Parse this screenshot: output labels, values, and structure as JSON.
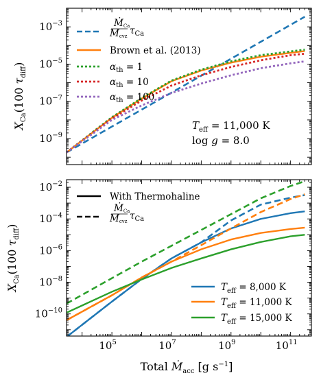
{
  "chart_data": [
    {
      "type": "line",
      "xlim": [
        3000.0,
        500000000000.0
      ],
      "ylim": [
        4e-11,
        0.01
      ],
      "xscale": "log",
      "yscale": "log",
      "ylabel": "X_Ca(100 τ_diff)",
      "x_ticks": [
        "10^5",
        "10^7",
        "10^9",
        "10^11"
      ],
      "y_ticks": [
        "10^-9",
        "10^-7",
        "10^-5",
        "10^-3"
      ],
      "legend_position": "upper-left",
      "annotation": [
        "T_eff = 11,000 K",
        "log g = 8.0"
      ],
      "series": [
        {
          "name": "(Ṁ_Ca / M_cvz) τ_Ca",
          "color": "#1f77b4",
          "style": "dashed",
          "points": [
            [
              3000.0,
              1.8e-10
            ],
            [
              300000000000.0,
              0.0035
            ]
          ]
        },
        {
          "name": "Brown et al. (2013)",
          "color": "#ff7f0e",
          "style": "solid",
          "points": [
            [
              3000.0,
              1.8e-10
            ],
            [
              100000.0,
              1.3e-08
            ],
            [
              1000000.0,
              1.4e-07
            ],
            [
              10000000.0,
              1.2e-06
            ],
            [
              100000000.0,
              4.5e-06
            ],
            [
              1000000000.0,
              1.2e-05
            ],
            [
              10000000000.0,
              2.5e-05
            ],
            [
              100000000000.0,
              4e-05
            ],
            [
              300000000000.0,
              5e-05
            ]
          ]
        },
        {
          "name": "α_th = 1",
          "color": "#2ca02c",
          "style": "dotted",
          "points": [
            [
              3000.0,
              1.8e-10
            ],
            [
              100000.0,
              1.4e-08
            ],
            [
              1000000.0,
              1.5e-07
            ],
            [
              10000000.0,
              1.3e-06
            ],
            [
              100000000.0,
              5e-06
            ],
            [
              1000000000.0,
              1.4e-05
            ],
            [
              10000000000.0,
              3e-05
            ],
            [
              100000000000.0,
              4.8e-05
            ],
            [
              300000000000.0,
              6e-05
            ]
          ]
        },
        {
          "name": "α_th = 10",
          "color": "#d62728",
          "style": "dotted",
          "points": [
            [
              3000.0,
              1.8e-10
            ],
            [
              100000.0,
              1.2e-08
            ],
            [
              1000000.0,
              1.1e-07
            ],
            [
              10000000.0,
              7e-07
            ],
            [
              100000000.0,
              2.5e-06
            ],
            [
              1000000000.0,
              7e-06
            ],
            [
              10000000000.0,
              1.6e-05
            ],
            [
              100000000000.0,
              3e-05
            ],
            [
              300000000000.0,
              3.6e-05
            ]
          ]
        },
        {
          "name": "α_th = 100",
          "color": "#9467bd",
          "style": "dotted",
          "points": [
            [
              3000.0,
              1.8e-10
            ],
            [
              100000.0,
              1e-08
            ],
            [
              1000000.0,
              6e-08
            ],
            [
              10000000.0,
              2.8e-07
            ],
            [
              100000000.0,
              9e-07
            ],
            [
              1000000000.0,
              2.5e-06
            ],
            [
              10000000000.0,
              6e-06
            ],
            [
              100000000000.0,
              1.1e-05
            ],
            [
              300000000000.0,
              1.4e-05
            ]
          ]
        }
      ]
    },
    {
      "type": "line",
      "xlim": [
        3000.0,
        500000000000.0
      ],
      "ylim": [
        4e-12,
        0.03
      ],
      "xscale": "log",
      "yscale": "log",
      "xlabel": "Total Ṁ_acc [g s^-1]",
      "ylabel": "X_Ca(100 τ_diff)",
      "x_ticks": [
        "10^5",
        "10^7",
        "10^9",
        "10^11"
      ],
      "y_ticks": [
        "10^-10",
        "10^-8",
        "10^-6",
        "10^-4",
        "10^-2"
      ],
      "style_legend": [
        {
          "label": "With Thermohaline",
          "style": "solid"
        },
        {
          "label": "(Ṁ_Ca / M_cvz) τ_Ca",
          "style": "dashed"
        }
      ],
      "series": [
        {
          "name": "T_eff = 8,000 K",
          "color": "#1f77b4",
          "style": "solid",
          "points": [
            [
              3000.0,
              3.5e-12
            ],
            [
              100000.0,
              6e-10
            ],
            [
              1000000.0,
              1.6e-08
            ],
            [
              10000000.0,
              3.2e-07
            ],
            [
              100000000.0,
              3.3e-06
            ],
            [
              1000000000.0,
              2.5e-05
            ],
            [
              10000000000.0,
              0.0001
            ],
            [
              100000000000.0,
              0.00023
            ],
            [
              300000000000.0,
              0.0003
            ]
          ]
        },
        {
          "name": "T_eff = 8,000 K (dashed)",
          "color": "#1f77b4",
          "style": "dashed",
          "points": [
            [
              3000.0,
              3.5e-12
            ],
            [
              100000.0,
              6e-10
            ],
            [
              1000000.0,
              1.6e-08
            ],
            [
              10000000.0,
              3.2e-07
            ],
            [
              100000000.0,
              3.3e-06
            ],
            [
              1000000000.0,
              8e-05
            ],
            [
              10000000000.0,
              0.0008
            ],
            [
              100000000000.0,
              0.0022
            ],
            [
              300000000000.0,
              0.0032
            ]
          ]
        },
        {
          "name": "T_eff = 11,000 K",
          "color": "#ff7f0e",
          "style": "solid",
          "points": [
            [
              3000.0,
              4e-11
            ],
            [
              100000.0,
              1.5e-09
            ],
            [
              1000000.0,
              2e-08
            ],
            [
              10000000.0,
              2e-07
            ],
            [
              100000000.0,
              1.2e-06
            ],
            [
              1000000000.0,
              5e-06
            ],
            [
              10000000000.0,
              1.3e-05
            ],
            [
              100000000000.0,
              2.3e-05
            ],
            [
              300000000000.0,
              2.8e-05
            ]
          ]
        },
        {
          "name": "T_eff = 11,000 K (dashed)",
          "color": "#ff7f0e",
          "style": "dashed",
          "points": [
            [
              3000.0,
              4e-11
            ],
            [
              100000.0,
              1.5e-09
            ],
            [
              1000000.0,
              2e-08
            ],
            [
              10000000.0,
              2e-07
            ],
            [
              100000000.0,
              2.2e-06
            ],
            [
              1000000000.0,
              2.5e-05
            ],
            [
              10000000000.0,
              0.00027
            ],
            [
              100000000000.0,
              0.0018
            ],
            [
              300000000000.0,
              0.0036
            ]
          ]
        },
        {
          "name": "T_eff = 15,000 K",
          "color": "#2ca02c",
          "style": "solid",
          "points": [
            [
              3000.0,
              1.2e-10
            ],
            [
              100000.0,
              2.5e-09
            ],
            [
              1000000.0,
              1.5e-08
            ],
            [
              10000000.0,
              8e-08
            ],
            [
              100000000.0,
              3.2e-07
            ],
            [
              1000000000.0,
              1.2e-06
            ],
            [
              10000000000.0,
              3.5e-06
            ],
            [
              100000000000.0,
              8e-06
            ],
            [
              300000000000.0,
              1e-05
            ]
          ]
        },
        {
          "name": "T_eff = 15,000 K (dashed)",
          "color": "#2ca02c",
          "style": "dashed",
          "points": [
            [
              3000.0,
              4.5e-10
            ],
            [
              100000.0,
              1.8e-08
            ],
            [
              1000000.0,
              2e-07
            ],
            [
              10000000.0,
              2e-06
            ],
            [
              100000000.0,
              2e-05
            ],
            [
              1000000000.0,
              0.0002
            ],
            [
              10000000000.0,
              0.002
            ],
            [
              100000000000.0,
              0.012
            ],
            [
              300000000000.0,
              0.024
            ]
          ]
        }
      ]
    }
  ]
}
